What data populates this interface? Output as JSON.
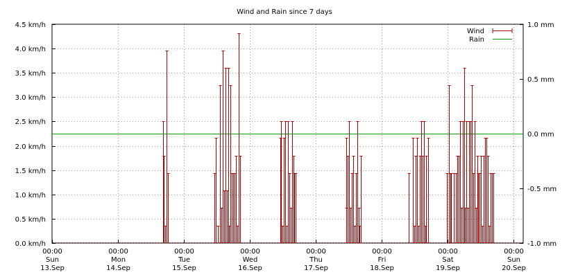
{
  "chart_data": {
    "type": "line",
    "title": "Wind and Rain since 7 days",
    "xlabel": "",
    "ylabel": "",
    "y_left": {
      "ylim": [
        0,
        4.5
      ],
      "ticks": [
        "0.0 km/h",
        "0.5 km/h",
        "1.0 km/h",
        "1.5 km/h",
        "2.0 km/h",
        "2.5 km/h",
        "3.0 km/h",
        "3.5 km/h",
        "4.0 km/h",
        "4.5 km/h"
      ]
    },
    "y_right": {
      "ylim": [
        -1.0,
        1.0
      ],
      "ticks": [
        "-1.0 mm",
        "-0.5 mm",
        "0.0 mm",
        "0.5 mm",
        "1.0 mm"
      ]
    },
    "x_ticks": [
      {
        "time": "00:00",
        "day": "Sun",
        "date": "13.Sep"
      },
      {
        "time": "00:00",
        "day": "Mon",
        "date": "14.Sep"
      },
      {
        "time": "00:00",
        "day": "Tue",
        "date": "15.Sep"
      },
      {
        "time": "00:00",
        "day": "Wed",
        "date": "16.Sep"
      },
      {
        "time": "00:00",
        "day": "Thu",
        "date": "17.Sep"
      },
      {
        "time": "00:00",
        "day": "Fri",
        "date": "18.Sep"
      },
      {
        "time": "00:00",
        "day": "Sat",
        "date": "19.Sep"
      },
      {
        "time": "00:00",
        "day": "Sun",
        "date": "20.Sep"
      }
    ],
    "x_range_days": [
      0,
      7.15
    ],
    "grid": true,
    "legend_position": "top-right",
    "series": [
      {
        "name": "Wind",
        "color": "#b00000",
        "style": "impulses",
        "axis": "left",
        "points": [
          [
            1.68,
            2.5
          ],
          [
            1.7,
            1.8
          ],
          [
            1.72,
            0.36
          ],
          [
            1.74,
            3.96
          ],
          [
            1.76,
            1.44
          ],
          [
            2.46,
            1.44
          ],
          [
            2.49,
            2.16
          ],
          [
            2.52,
            0.36
          ],
          [
            2.55,
            3.24
          ],
          [
            2.57,
            0.72
          ],
          [
            2.59,
            3.96
          ],
          [
            2.61,
            1.08
          ],
          [
            2.63,
            3.6
          ],
          [
            2.65,
            1.08
          ],
          [
            2.67,
            3.6
          ],
          [
            2.69,
            0.36
          ],
          [
            2.71,
            3.24
          ],
          [
            2.73,
            1.44
          ],
          [
            2.75,
            1.44
          ],
          [
            2.77,
            1.44
          ],
          [
            2.79,
            1.8
          ],
          [
            2.81,
            0.36
          ],
          [
            2.83,
            4.32
          ],
          [
            2.85,
            1.8
          ],
          [
            3.46,
            2.16
          ],
          [
            3.48,
            2.5
          ],
          [
            3.5,
            0.36
          ],
          [
            3.52,
            2.16
          ],
          [
            3.54,
            2.5
          ],
          [
            3.56,
            0.36
          ],
          [
            3.58,
            2.5
          ],
          [
            3.6,
            1.44
          ],
          [
            3.62,
            0.72
          ],
          [
            3.64,
            2.5
          ],
          [
            3.66,
            1.8
          ],
          [
            3.68,
            1.44
          ],
          [
            3.7,
            1.44
          ],
          [
            4.46,
            2.16
          ],
          [
            4.47,
            0.72
          ],
          [
            4.49,
            1.8
          ],
          [
            4.51,
            2.5
          ],
          [
            4.53,
            0.72
          ],
          [
            4.55,
            1.44
          ],
          [
            4.57,
            1.8
          ],
          [
            4.59,
            0.36
          ],
          [
            4.61,
            1.44
          ],
          [
            4.63,
            2.5
          ],
          [
            4.65,
            0.72
          ],
          [
            4.67,
            0.36
          ],
          [
            4.69,
            1.8
          ],
          [
            5.41,
            1.44
          ],
          [
            5.48,
            2.16
          ],
          [
            5.5,
            0.36
          ],
          [
            5.52,
            1.8
          ],
          [
            5.54,
            2.16
          ],
          [
            5.56,
            0.36
          ],
          [
            5.58,
            1.8
          ],
          [
            5.6,
            2.5
          ],
          [
            5.62,
            1.8
          ],
          [
            5.64,
            2.5
          ],
          [
            5.66,
            0.36
          ],
          [
            5.68,
            1.8
          ],
          [
            5.71,
            2.16
          ],
          [
            5.99,
            1.44
          ],
          [
            6.02,
            3.24
          ],
          [
            6.04,
            1.44
          ],
          [
            6.06,
            1.44
          ],
          [
            6.1,
            1.44
          ],
          [
            6.13,
            1.44
          ],
          [
            6.15,
            1.8
          ],
          [
            6.17,
            1.8
          ],
          [
            6.19,
            2.5
          ],
          [
            6.21,
            0.72
          ],
          [
            6.23,
            2.5
          ],
          [
            6.25,
            3.6
          ],
          [
            6.27,
            0.72
          ],
          [
            6.29,
            2.5
          ],
          [
            6.31,
            0.72
          ],
          [
            6.33,
            2.5
          ],
          [
            6.35,
            2.5
          ],
          [
            6.37,
            3.24
          ],
          [
            6.39,
            1.44
          ],
          [
            6.41,
            2.5
          ],
          [
            6.43,
            0.72
          ],
          [
            6.45,
            1.8
          ],
          [
            6.47,
            1.44
          ],
          [
            6.49,
            1.44
          ],
          [
            6.51,
            1.8
          ],
          [
            6.53,
            0.36
          ],
          [
            6.55,
            1.8
          ],
          [
            6.57,
            2.16
          ],
          [
            6.59,
            2.16
          ],
          [
            6.61,
            1.8
          ],
          [
            6.63,
            0.36
          ],
          [
            6.65,
            1.44
          ],
          [
            6.68,
            1.44
          ],
          [
            6.7,
            1.44
          ]
        ]
      },
      {
        "name": "Rain",
        "color": "#00a000",
        "style": "line",
        "axis": "right",
        "points": [
          [
            0,
            0
          ],
          [
            7.15,
            0
          ]
        ]
      }
    ]
  }
}
